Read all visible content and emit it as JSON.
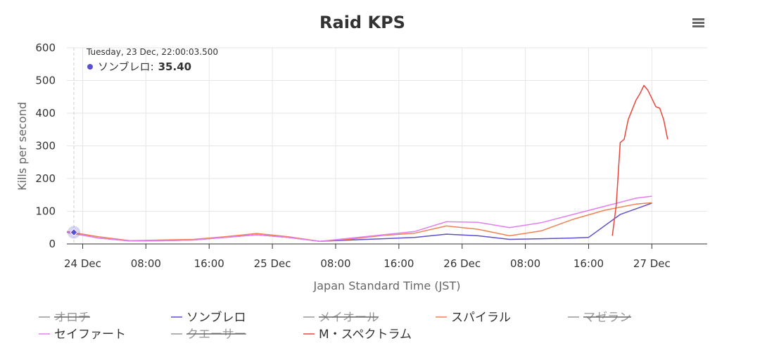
{
  "chart_data": {
    "type": "line",
    "title": "Raid KPS",
    "xlabel": "Japan Standard Time (JST)",
    "ylabel": "Kills per second",
    "ylim": [
      0,
      600
    ],
    "yticks": [
      0,
      100,
      200,
      300,
      400,
      500,
      600
    ],
    "xlim": [
      "2025-12-23T22:00",
      "2025-12-27T07:00"
    ],
    "xticks": [
      {
        "t": "2025-12-24T00:00",
        "label": "24 Dec"
      },
      {
        "t": "2025-12-24T08:00",
        "label": "08:00"
      },
      {
        "t": "2025-12-24T16:00",
        "label": "16:00"
      },
      {
        "t": "2025-12-25T00:00",
        "label": "25 Dec"
      },
      {
        "t": "2025-12-25T08:00",
        "label": "08:00"
      },
      {
        "t": "2025-12-25T16:00",
        "label": "16:00"
      },
      {
        "t": "2025-12-26T00:00",
        "label": "26 Dec"
      },
      {
        "t": "2025-12-26T08:00",
        "label": "08:00"
      },
      {
        "t": "2025-12-26T16:00",
        "label": "16:00"
      },
      {
        "t": "2025-12-27T00:00",
        "label": "27 Dec"
      }
    ],
    "grid": true,
    "legend_position": "bottom",
    "series": [
      {
        "name": "オロチ",
        "color": "#999999",
        "visible": false,
        "points": []
      },
      {
        "name": "ソンブレロ",
        "color": "#5a4fcf",
        "visible": true,
        "points": [
          [
            "2025-12-23T22:00",
            35.4
          ],
          [
            "2025-12-24T02:00",
            18
          ],
          [
            "2025-12-24T06:00",
            9
          ],
          [
            "2025-12-24T10:00",
            10
          ],
          [
            "2025-12-24T14:00",
            12
          ],
          [
            "2025-12-24T18:00",
            20
          ],
          [
            "2025-12-24T22:00",
            28
          ],
          [
            "2025-12-25T02:00",
            20
          ],
          [
            "2025-12-25T06:00",
            8
          ],
          [
            "2025-12-25T10:00",
            12
          ],
          [
            "2025-12-25T14:00",
            16
          ],
          [
            "2025-12-25T18:00",
            20
          ],
          [
            "2025-12-25T22:00",
            30
          ],
          [
            "2025-12-26T02:00",
            25
          ],
          [
            "2025-12-26T06:00",
            14
          ],
          [
            "2025-12-26T10:00",
            16
          ],
          [
            "2025-12-26T14:00",
            18
          ],
          [
            "2025-12-26T16:00",
            20
          ],
          [
            "2025-12-26T20:00",
            90
          ],
          [
            "2025-12-27T00:00",
            125
          ]
        ]
      },
      {
        "name": "メイオール",
        "color": "#999999",
        "visible": false,
        "points": []
      },
      {
        "name": "スパイラル",
        "color": "#f28152",
        "visible": true,
        "points": [
          [
            "2025-12-23T22:00",
            38
          ],
          [
            "2025-12-24T02:00",
            22
          ],
          [
            "2025-12-24T06:00",
            10
          ],
          [
            "2025-12-24T10:00",
            12
          ],
          [
            "2025-12-24T14:00",
            14
          ],
          [
            "2025-12-24T18:00",
            22
          ],
          [
            "2025-12-24T22:00",
            32
          ],
          [
            "2025-12-25T02:00",
            22
          ],
          [
            "2025-12-25T06:00",
            8
          ],
          [
            "2025-12-25T10:00",
            15
          ],
          [
            "2025-12-25T14:00",
            26
          ],
          [
            "2025-12-25T18:00",
            33
          ],
          [
            "2025-12-25T22:00",
            55
          ],
          [
            "2025-12-26T02:00",
            45
          ],
          [
            "2025-12-26T06:00",
            25
          ],
          [
            "2025-12-26T10:00",
            40
          ],
          [
            "2025-12-26T14:00",
            75
          ],
          [
            "2025-12-26T18:00",
            103
          ],
          [
            "2025-12-26T22:00",
            122
          ],
          [
            "2025-12-27T00:00",
            126
          ]
        ]
      },
      {
        "name": "マゼラン",
        "color": "#999999",
        "visible": false,
        "points": []
      },
      {
        "name": "セイファート",
        "color": "#e27ef0",
        "visible": true,
        "points": [
          [
            "2025-12-23T22:00",
            35
          ],
          [
            "2025-12-24T02:00",
            18
          ],
          [
            "2025-12-24T06:00",
            9
          ],
          [
            "2025-12-24T10:00",
            10
          ],
          [
            "2025-12-24T14:00",
            12
          ],
          [
            "2025-12-24T18:00",
            20
          ],
          [
            "2025-12-24T22:00",
            28
          ],
          [
            "2025-12-25T02:00",
            20
          ],
          [
            "2025-12-25T06:00",
            8
          ],
          [
            "2025-12-25T10:00",
            18
          ],
          [
            "2025-12-25T14:00",
            28
          ],
          [
            "2025-12-25T18:00",
            38
          ],
          [
            "2025-12-25T22:00",
            68
          ],
          [
            "2025-12-26T02:00",
            66
          ],
          [
            "2025-12-26T06:00",
            50
          ],
          [
            "2025-12-26T10:00",
            65
          ],
          [
            "2025-12-26T14:00",
            90
          ],
          [
            "2025-12-26T18:00",
            115
          ],
          [
            "2025-12-26T22:00",
            140
          ],
          [
            "2025-12-27T00:00",
            146
          ]
        ]
      },
      {
        "name": "クエーサー",
        "color": "#999999",
        "visible": false,
        "points": []
      },
      {
        "name": "M・スペクトラム",
        "color": "#e8463c",
        "visible": true,
        "points": [
          [
            "2025-12-26T19:00",
            25
          ],
          [
            "2025-12-26T19:30",
            120
          ],
          [
            "2025-12-26T20:00",
            310
          ],
          [
            "2025-12-26T20:30",
            320
          ],
          [
            "2025-12-26T21:00",
            380
          ],
          [
            "2025-12-26T21:30",
            410
          ],
          [
            "2025-12-26T22:00",
            440
          ],
          [
            "2025-12-26T22:30",
            460
          ],
          [
            "2025-12-26T23:00",
            485
          ],
          [
            "2025-12-26T23:30",
            470
          ],
          [
            "2025-12-27T00:00",
            445
          ],
          [
            "2025-12-27T00:30",
            420
          ],
          [
            "2025-12-27T01:00",
            415
          ],
          [
            "2025-12-27T01:30",
            380
          ],
          [
            "2025-12-27T02:00",
            320
          ]
        ]
      }
    ],
    "tooltip": {
      "header": "Tuesday, 23 Dec, 22:00:03.500",
      "series_name": "ソンブレロ",
      "colon": ":",
      "value": "35.40",
      "color": "#5a4fcf"
    }
  },
  "menu": {
    "icon": "hamburger-menu-icon"
  }
}
